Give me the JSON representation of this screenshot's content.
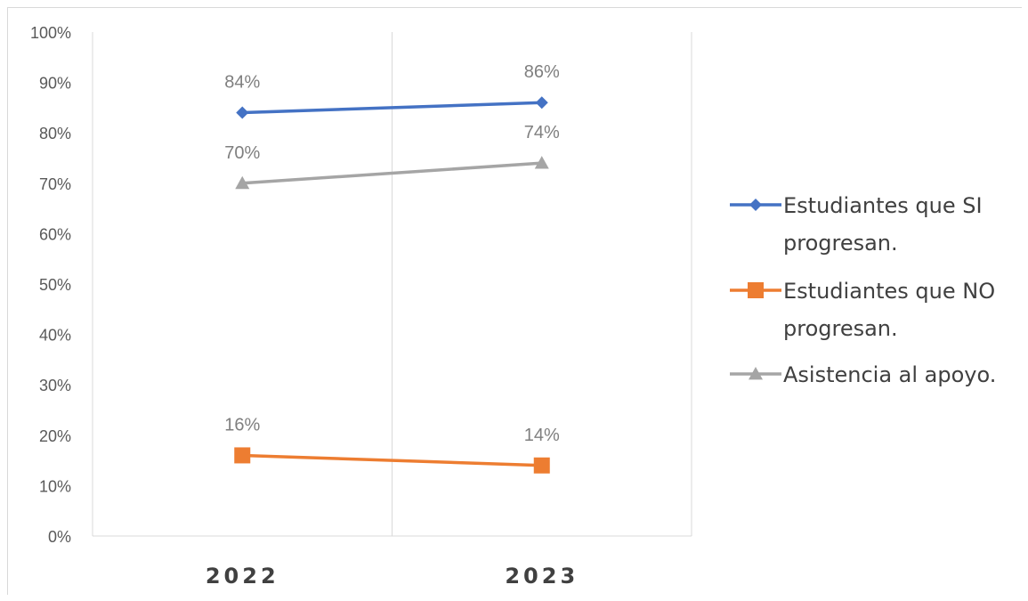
{
  "chart_data": {
    "type": "line",
    "categories": [
      "2022",
      "2023"
    ],
    "ylim": [
      0,
      100
    ],
    "y_ticks": [
      "0%",
      "10%",
      "20%",
      "30%",
      "40%",
      "50%",
      "60%",
      "70%",
      "80%",
      "90%",
      "100%"
    ],
    "grid": "vertical",
    "legend_position": "right",
    "series": [
      {
        "name": "Estudiantes que SI progresan.",
        "legend_lines": [
          "Estudiantes que SI",
          "progresan."
        ],
        "values": [
          84,
          86
        ],
        "labels": [
          "84%",
          "86%"
        ],
        "color": "#4472c4",
        "marker": "diamond"
      },
      {
        "name": "Estudiantes que NO progresan.",
        "legend_lines": [
          "Estudiantes que NO",
          "progresan."
        ],
        "values": [
          16,
          14
        ],
        "labels": [
          "16%",
          "14%"
        ],
        "color": "#ed7d31",
        "marker": "square"
      },
      {
        "name": "Asistencia al apoyo.",
        "legend_lines": [
          "Asistencia al apoyo."
        ],
        "values": [
          70,
          74
        ],
        "labels": [
          "70%",
          "74%"
        ],
        "color": "#a5a5a5",
        "marker": "triangle"
      }
    ]
  }
}
